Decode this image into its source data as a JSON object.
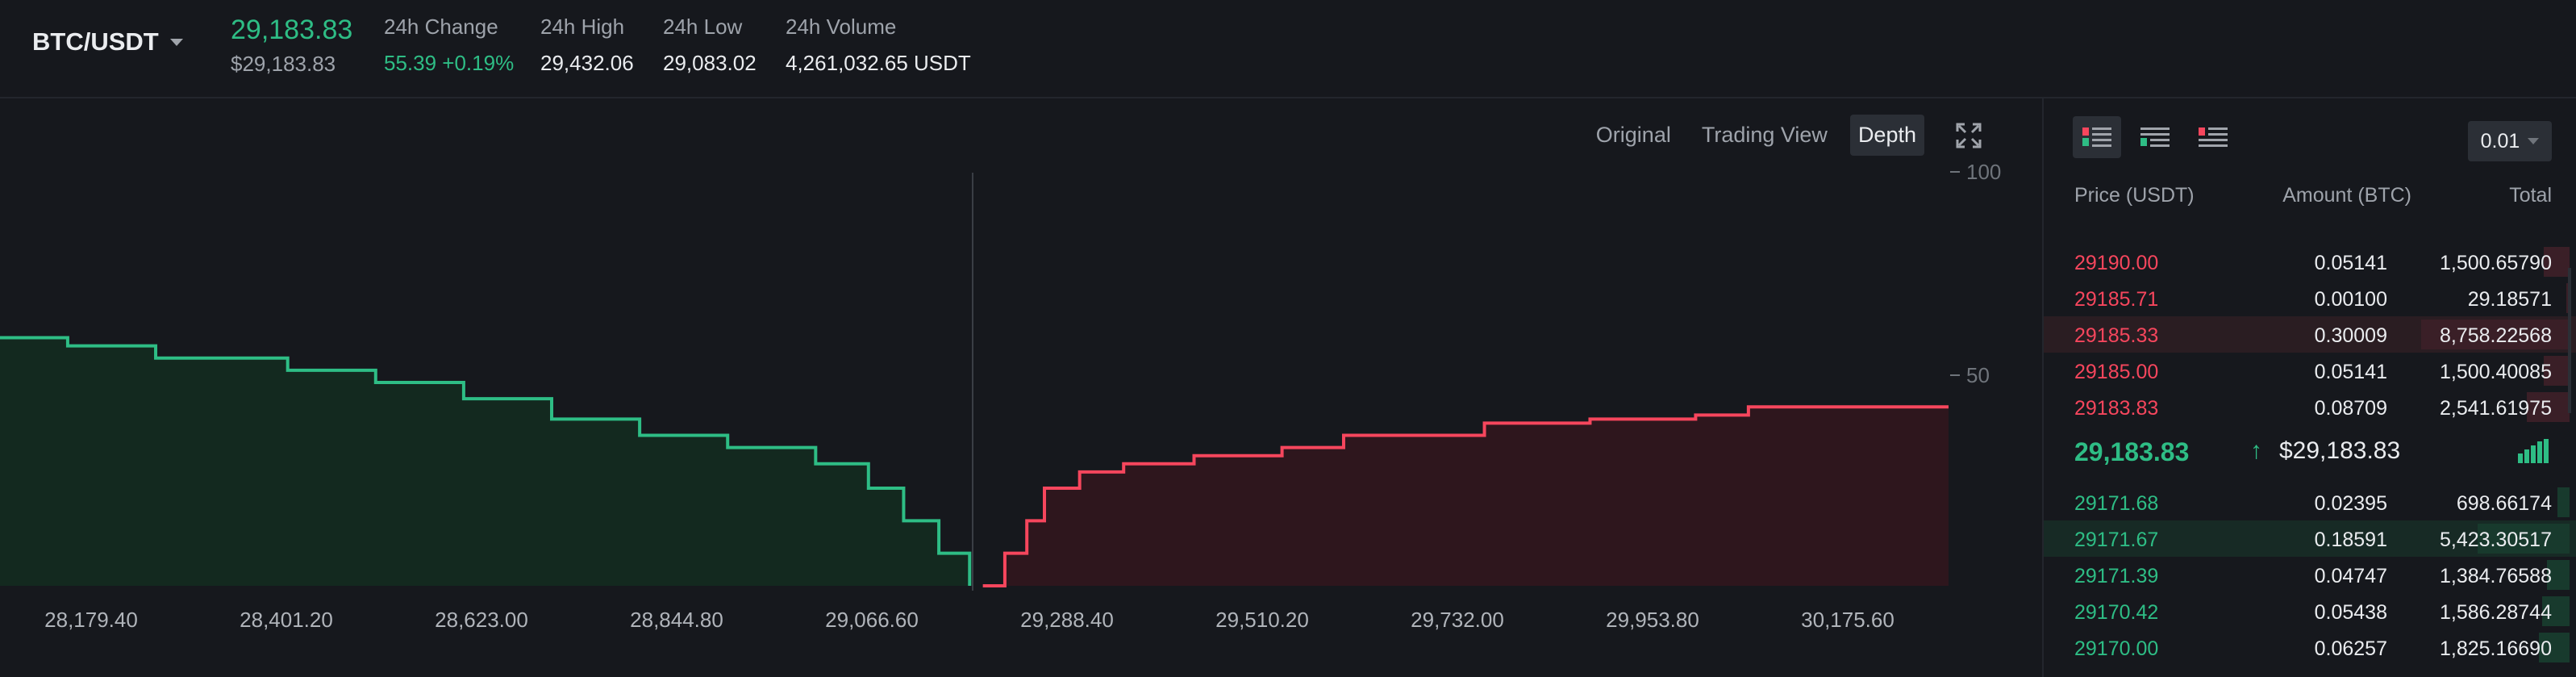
{
  "ticker": {
    "symbol": "BTC/USDT",
    "last_price": "29,183.83",
    "last_price_usd": "$29,183.83",
    "stats": [
      {
        "label": "24h Change",
        "value": "55.39 +0.19%",
        "up": true
      },
      {
        "label": "24h High",
        "value": "29,432.06"
      },
      {
        "label": "24h Low",
        "value": "29,083.02"
      },
      {
        "label": "24h Volume",
        "value": "4,261,032.65 USDT"
      }
    ]
  },
  "chart": {
    "tabs": [
      {
        "label": "Original",
        "active": false
      },
      {
        "label": "Trading View",
        "active": false
      },
      {
        "label": "Depth",
        "active": true
      }
    ],
    "y_ticks": [
      "100",
      "50"
    ],
    "x_ticks": [
      "28,179.40",
      "28,401.20",
      "28,623.00",
      "28,844.80",
      "29,066.60",
      "29,288.40",
      "29,510.20",
      "29,732.00",
      "29,953.80",
      "30,175.60"
    ],
    "colors": {
      "bid": "#2ebd85",
      "ask": "#f6465d",
      "bid_fill": "#13291f",
      "ask_fill": "#2e161d"
    }
  },
  "chart_data": {
    "type": "area",
    "x_ticks": [
      28179.4,
      28401.2,
      28623.0,
      28844.8,
      29066.6,
      29288.4,
      29510.2,
      29732.0,
      29953.8,
      30175.6
    ],
    "ylim": [
      0,
      100
    ],
    "series": [
      {
        "name": "",
        "side": "bid",
        "x": [
          28080,
          28150,
          28250,
          28400,
          28500,
          28600,
          28700,
          28800,
          28900,
          29000,
          29060,
          29100,
          29140,
          29175
        ],
        "y": [
          61,
          59,
          56,
          53,
          50,
          46,
          41,
          37,
          34,
          30,
          24,
          16,
          8,
          0
        ]
      },
      {
        "name": "",
        "side": "ask",
        "x": [
          29190,
          29215,
          29240,
          29260,
          29300,
          29350,
          29430,
          29530,
          29600,
          29760,
          29880,
          30000,
          30060,
          30280
        ],
        "y": [
          0,
          8,
          16,
          24,
          28,
          30,
          32,
          34,
          37,
          40,
          41,
          42,
          44,
          44
        ]
      }
    ],
    "grid": false
  },
  "book": {
    "precision": "0.01",
    "headers": {
      "price": "Price (USDT)",
      "amount": "Amount (BTC)",
      "total": "Total"
    },
    "asks": [
      {
        "price": "29190.00",
        "amount": "0.05141",
        "total": "1,500.65790",
        "depth": 0.17
      },
      {
        "price": "29185.71",
        "amount": "0.00100",
        "total": "29.18571",
        "depth": 0.02
      },
      {
        "price": "29185.33",
        "amount": "0.30009",
        "total": "8,758.22568",
        "depth": 0.97,
        "highlight": true
      },
      {
        "price": "29185.00",
        "amount": "0.05141",
        "total": "1,500.40085",
        "depth": 0.17
      },
      {
        "price": "29183.83",
        "amount": "0.08709",
        "total": "2,541.61975",
        "depth": 0.28
      }
    ],
    "mid": {
      "price": "29,183.83",
      "arrow": "↑",
      "usd": "$29,183.83"
    },
    "bids": [
      {
        "price": "29171.68",
        "amount": "0.02395",
        "total": "698.66174",
        "depth": 0.08
      },
      {
        "price": "29171.67",
        "amount": "0.18591",
        "total": "5,423.30517",
        "depth": 0.6,
        "highlight": true
      },
      {
        "price": "29171.39",
        "amount": "0.04747",
        "total": "1,384.76588",
        "depth": 0.15
      },
      {
        "price": "29170.42",
        "amount": "0.05438",
        "total": "1,586.28744",
        "depth": 0.18
      },
      {
        "price": "29170.00",
        "amount": "0.06257",
        "total": "1,825.16690",
        "depth": 0.2
      }
    ]
  }
}
